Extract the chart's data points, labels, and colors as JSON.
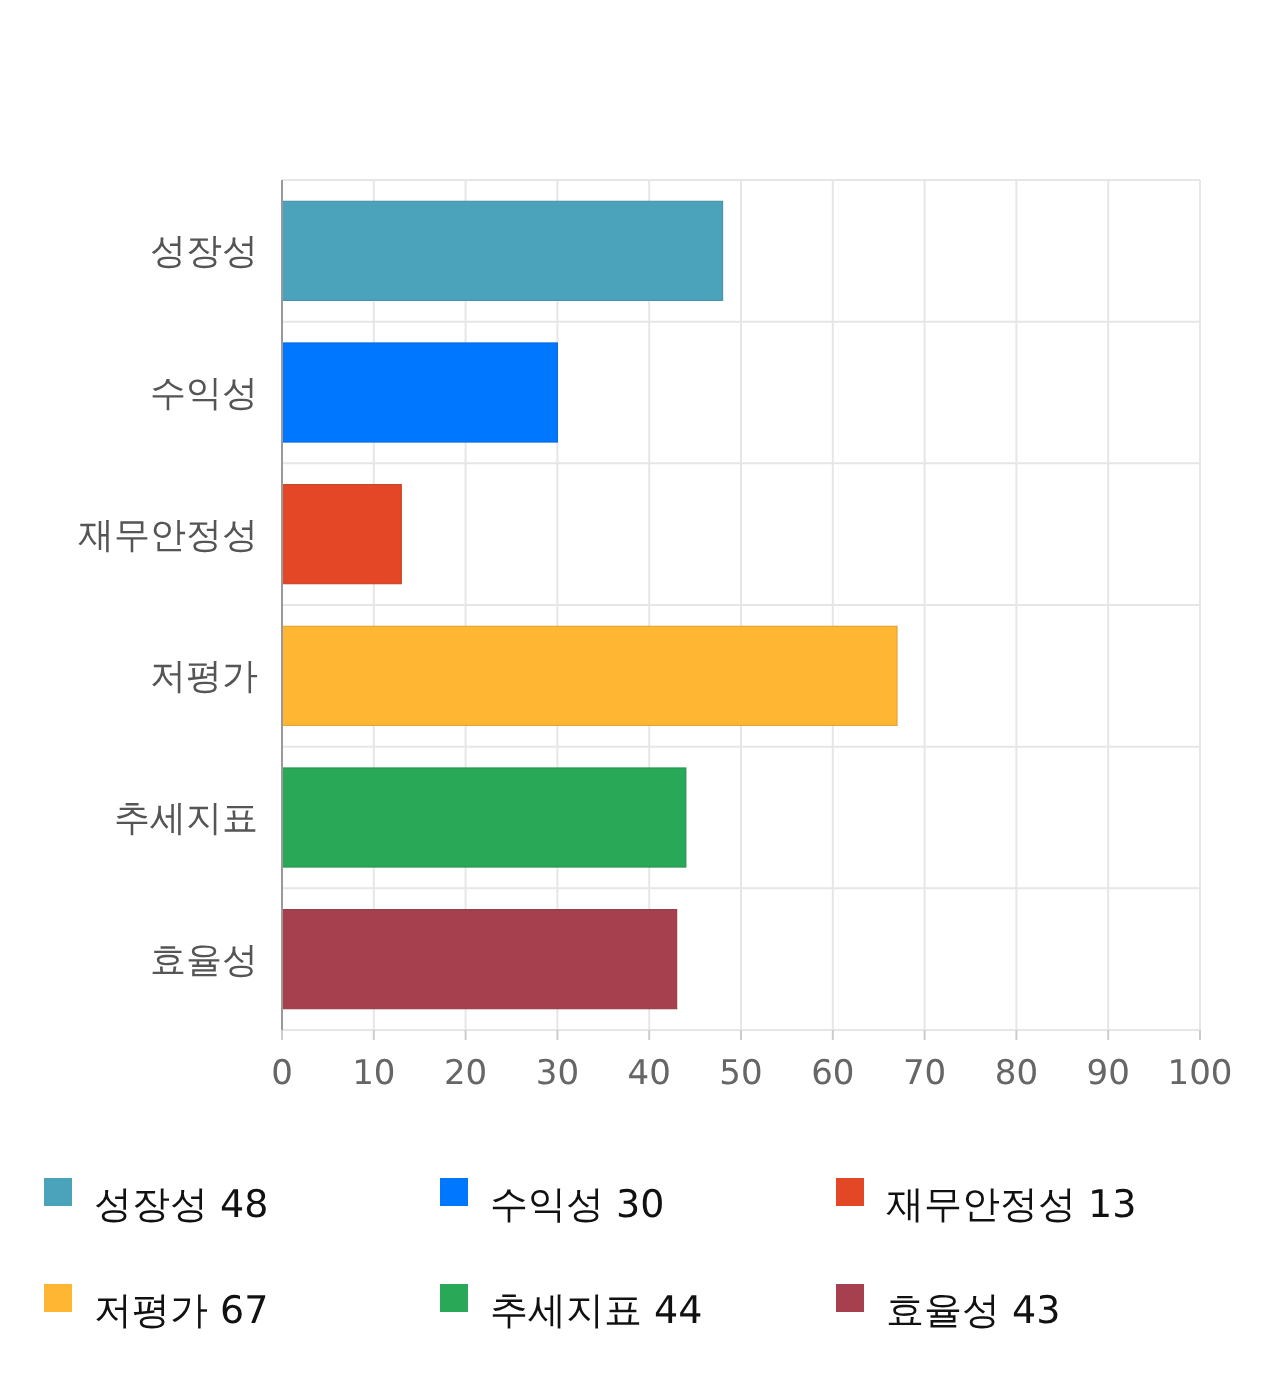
{
  "chart_data": {
    "type": "bar",
    "orientation": "horizontal",
    "stacked": true,
    "categories": [
      "성장성",
      "수익성",
      "재무안정성",
      "저평가",
      "추세지표",
      "효율성"
    ],
    "series": [
      {
        "name": "성장성 48",
        "color": "#4ba2bb",
        "values": [
          48,
          null,
          null,
          null,
          null,
          null
        ]
      },
      {
        "name": "수익성 30",
        "color": "#0077ff",
        "values": [
          null,
          30,
          null,
          null,
          null,
          null
        ]
      },
      {
        "name": "재무안정성 13",
        "color": "#e34725",
        "values": [
          null,
          null,
          13,
          null,
          null,
          null
        ]
      },
      {
        "name": "저평가 67",
        "color": "#ffb733",
        "values": [
          null,
          null,
          null,
          67,
          null,
          null
        ]
      },
      {
        "name": "추세지표 44",
        "color": "#29a857",
        "values": [
          null,
          null,
          null,
          null,
          44,
          null
        ]
      },
      {
        "name": "효율성 43",
        "color": "#a6404f",
        "values": [
          null,
          null,
          null,
          null,
          null,
          43
        ]
      }
    ],
    "xlim": [
      0,
      100
    ],
    "xticks": [
      0,
      10,
      20,
      30,
      40,
      50,
      60,
      70,
      80,
      90,
      100
    ],
    "grid": true,
    "legend": "bottom"
  }
}
